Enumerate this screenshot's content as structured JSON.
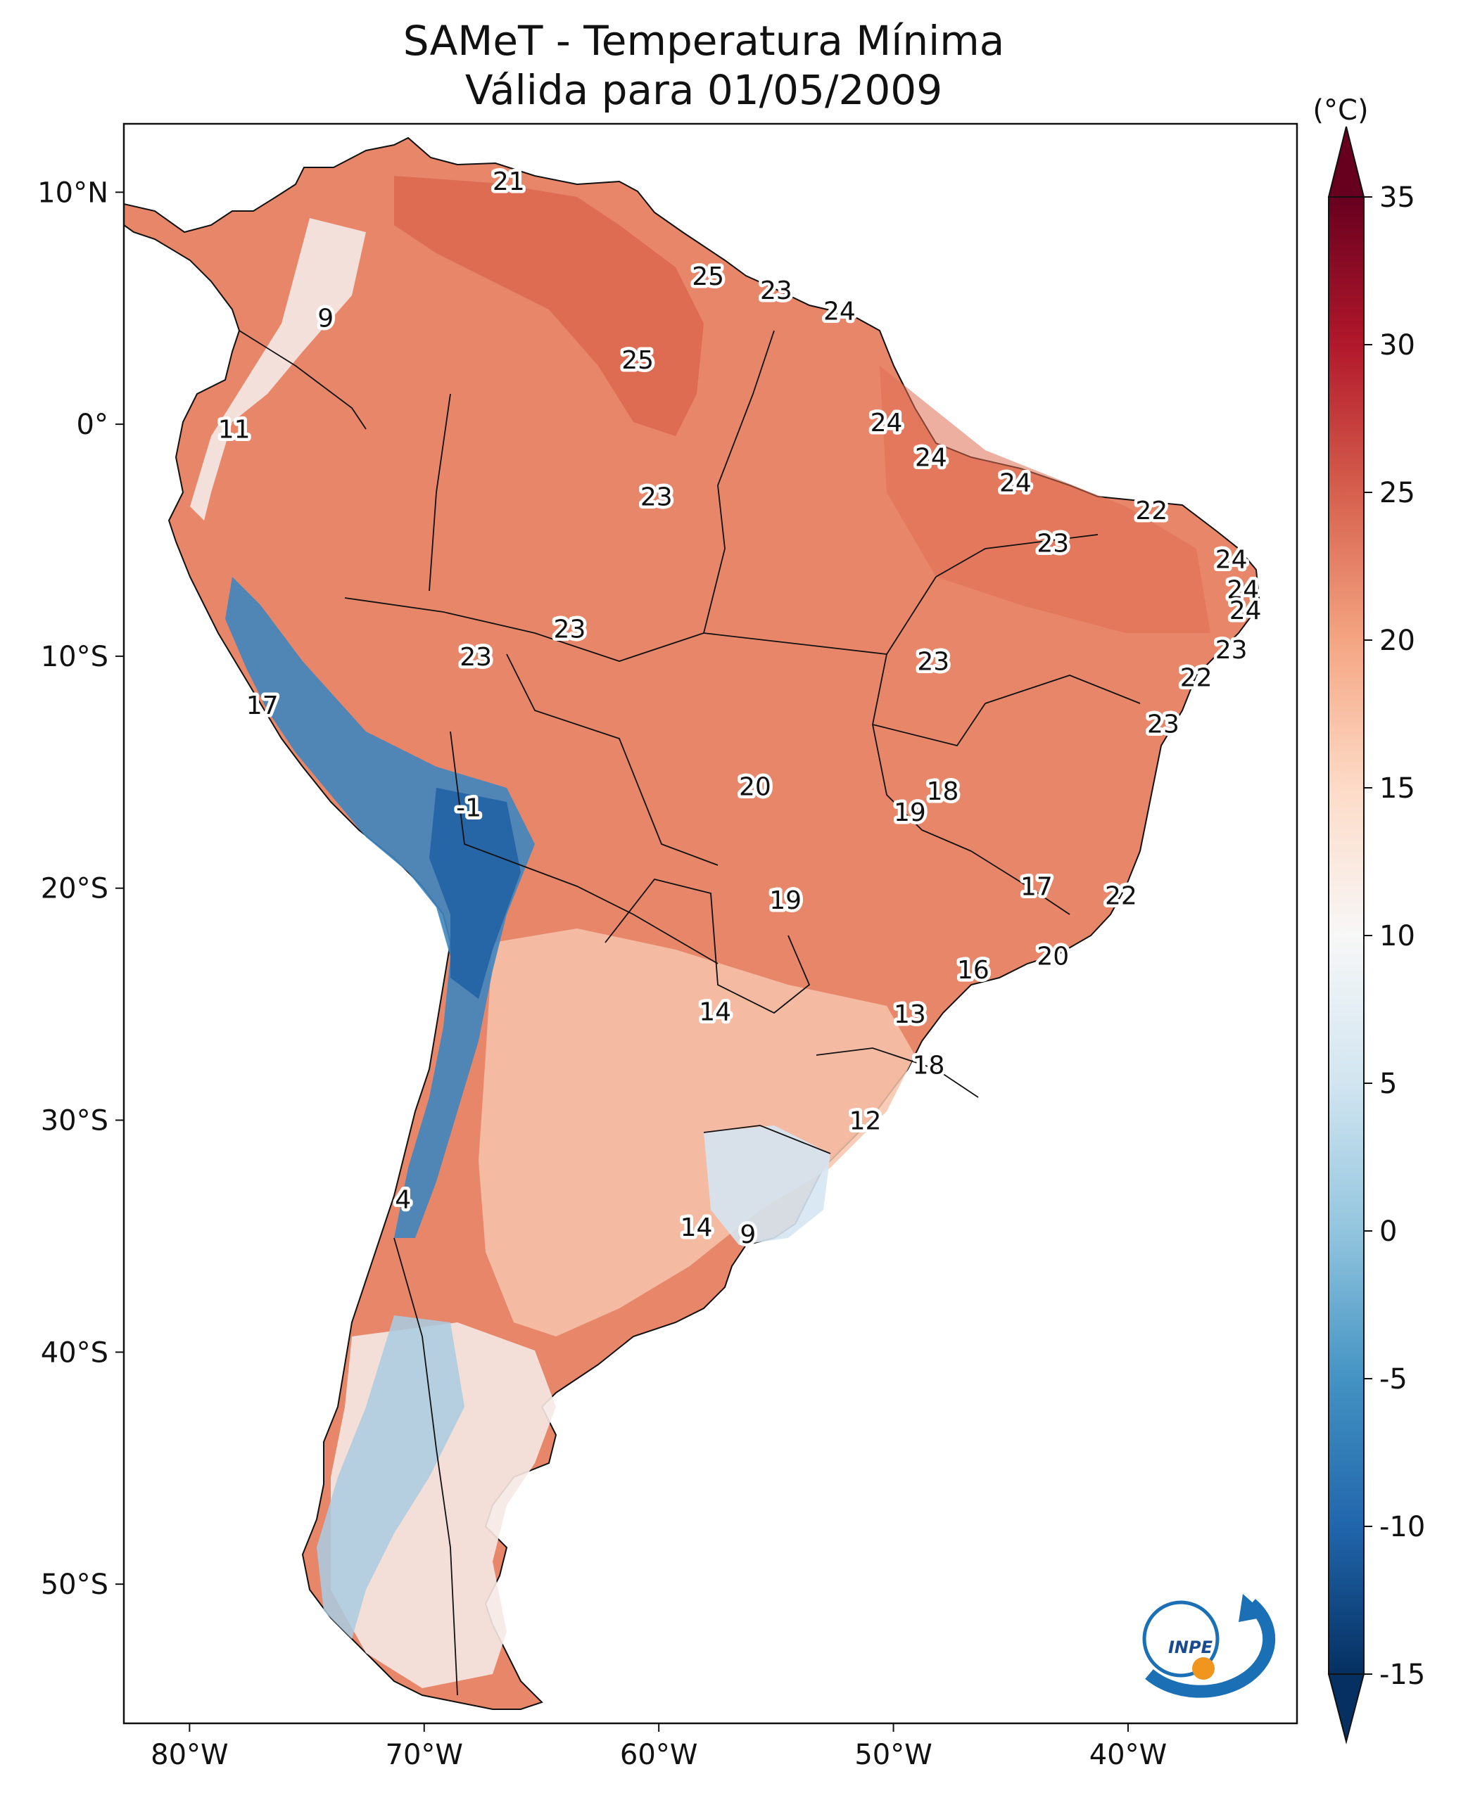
{
  "title_line1": "SAMeT - Temperatura Mínima",
  "title_line2": "Válida para 01/05/2009",
  "map": {
    "lat_ticks": [
      {
        "value": 10,
        "label": "10°N"
      },
      {
        "value": 0,
        "label": "0°"
      },
      {
        "value": -10,
        "label": "10°S"
      },
      {
        "value": -20,
        "label": "20°S"
      },
      {
        "value": -30,
        "label": "30°S"
      },
      {
        "value": -40,
        "label": "40°S"
      },
      {
        "value": -50,
        "label": "50°S"
      }
    ],
    "lon_ticks": [
      {
        "value": -80,
        "label": "80°W"
      },
      {
        "value": -70,
        "label": "70°W"
      },
      {
        "value": -60,
        "label": "60°W"
      },
      {
        "value": -50,
        "label": "50°W"
      },
      {
        "value": -40,
        "label": "40°W"
      }
    ],
    "extent": {
      "lon_min": -82.8,
      "lon_max": -32.8,
      "lat_min": -56.0,
      "lat_max": 12.95
    },
    "station_labels": [
      {
        "value": "21",
        "lon": -66.4,
        "lat": 10.5
      },
      {
        "value": "25",
        "lon": -57.9,
        "lat": 6.4
      },
      {
        "value": "23",
        "lon": -55.0,
        "lat": 5.8
      },
      {
        "value": "24",
        "lon": -52.3,
        "lat": 4.9
      },
      {
        "value": "9",
        "lon": -74.2,
        "lat": 4.6
      },
      {
        "value": "25",
        "lon": -60.9,
        "lat": 2.8
      },
      {
        "value": "11",
        "lon": -78.1,
        "lat": -0.2
      },
      {
        "value": "24",
        "lon": -50.3,
        "lat": 0.1
      },
      {
        "value": "24",
        "lon": -48.4,
        "lat": -1.4
      },
      {
        "value": "24",
        "lon": -44.8,
        "lat": -2.5
      },
      {
        "value": "23",
        "lon": -60.1,
        "lat": -3.1
      },
      {
        "value": "22",
        "lon": -39.0,
        "lat": -3.7
      },
      {
        "value": "23",
        "lon": -43.2,
        "lat": -5.1
      },
      {
        "value": "24",
        "lon": -35.6,
        "lat": -5.8
      },
      {
        "value": "24",
        "lon": -35.1,
        "lat": -7.1
      },
      {
        "value": "24",
        "lon": -35.0,
        "lat": -8.0
      },
      {
        "value": "23",
        "lon": -63.8,
        "lat": -8.8
      },
      {
        "value": "23",
        "lon": -35.6,
        "lat": -9.7
      },
      {
        "value": "23",
        "lon": -67.8,
        "lat": -10.0
      },
      {
        "value": "23",
        "lon": -48.3,
        "lat": -10.2
      },
      {
        "value": "22",
        "lon": -37.1,
        "lat": -10.9
      },
      {
        "value": "17",
        "lon": -76.9,
        "lat": -12.1
      },
      {
        "value": "23",
        "lon": -38.5,
        "lat": -12.9
      },
      {
        "value": "20",
        "lon": -55.9,
        "lat": -15.6
      },
      {
        "value": "18",
        "lon": -47.9,
        "lat": -15.8
      },
      {
        "value": "19",
        "lon": -49.3,
        "lat": -16.7
      },
      {
        "value": "-1",
        "lon": -68.1,
        "lat": -16.5
      },
      {
        "value": "17",
        "lon": -43.9,
        "lat": -19.9
      },
      {
        "value": "22",
        "lon": -40.3,
        "lat": -20.3
      },
      {
        "value": "19",
        "lon": -54.6,
        "lat": -20.5
      },
      {
        "value": "20",
        "lon": -43.2,
        "lat": -22.9
      },
      {
        "value": "16",
        "lon": -46.6,
        "lat": -23.5
      },
      {
        "value": "13",
        "lon": -49.3,
        "lat": -25.4
      },
      {
        "value": "14",
        "lon": -57.6,
        "lat": -25.3
      },
      {
        "value": "18",
        "lon": -48.5,
        "lat": -27.6
      },
      {
        "value": "12",
        "lon": -51.2,
        "lat": -30.0
      },
      {
        "value": "4",
        "lon": -70.9,
        "lat": -33.4
      },
      {
        "value": "14",
        "lon": -58.4,
        "lat": -34.6
      },
      {
        "value": "9",
        "lon": -56.2,
        "lat": -34.9
      }
    ]
  },
  "colorbar": {
    "unit_label": "(°C)",
    "vmin": -15,
    "vmax": 35,
    "ticks": [
      {
        "value": 35,
        "label": "35"
      },
      {
        "value": 30,
        "label": "30"
      },
      {
        "value": 25,
        "label": "25"
      },
      {
        "value": 20,
        "label": "20"
      },
      {
        "value": 15,
        "label": "15"
      },
      {
        "value": 10,
        "label": "10"
      },
      {
        "value": 5,
        "label": "5"
      },
      {
        "value": 0,
        "label": "0"
      },
      {
        "value": -5,
        "label": "-5"
      },
      {
        "value": -10,
        "label": "-10"
      },
      {
        "value": -15,
        "label": "-15"
      }
    ],
    "colormap": "RdBu_r",
    "colors": {
      "low": "#053061",
      "mid": "#f7f7f7",
      "high": "#67001f"
    }
  },
  "logo": {
    "text": "INPE",
    "ring_color": "#1a6fb5",
    "dot_color": "#f0961e"
  }
}
